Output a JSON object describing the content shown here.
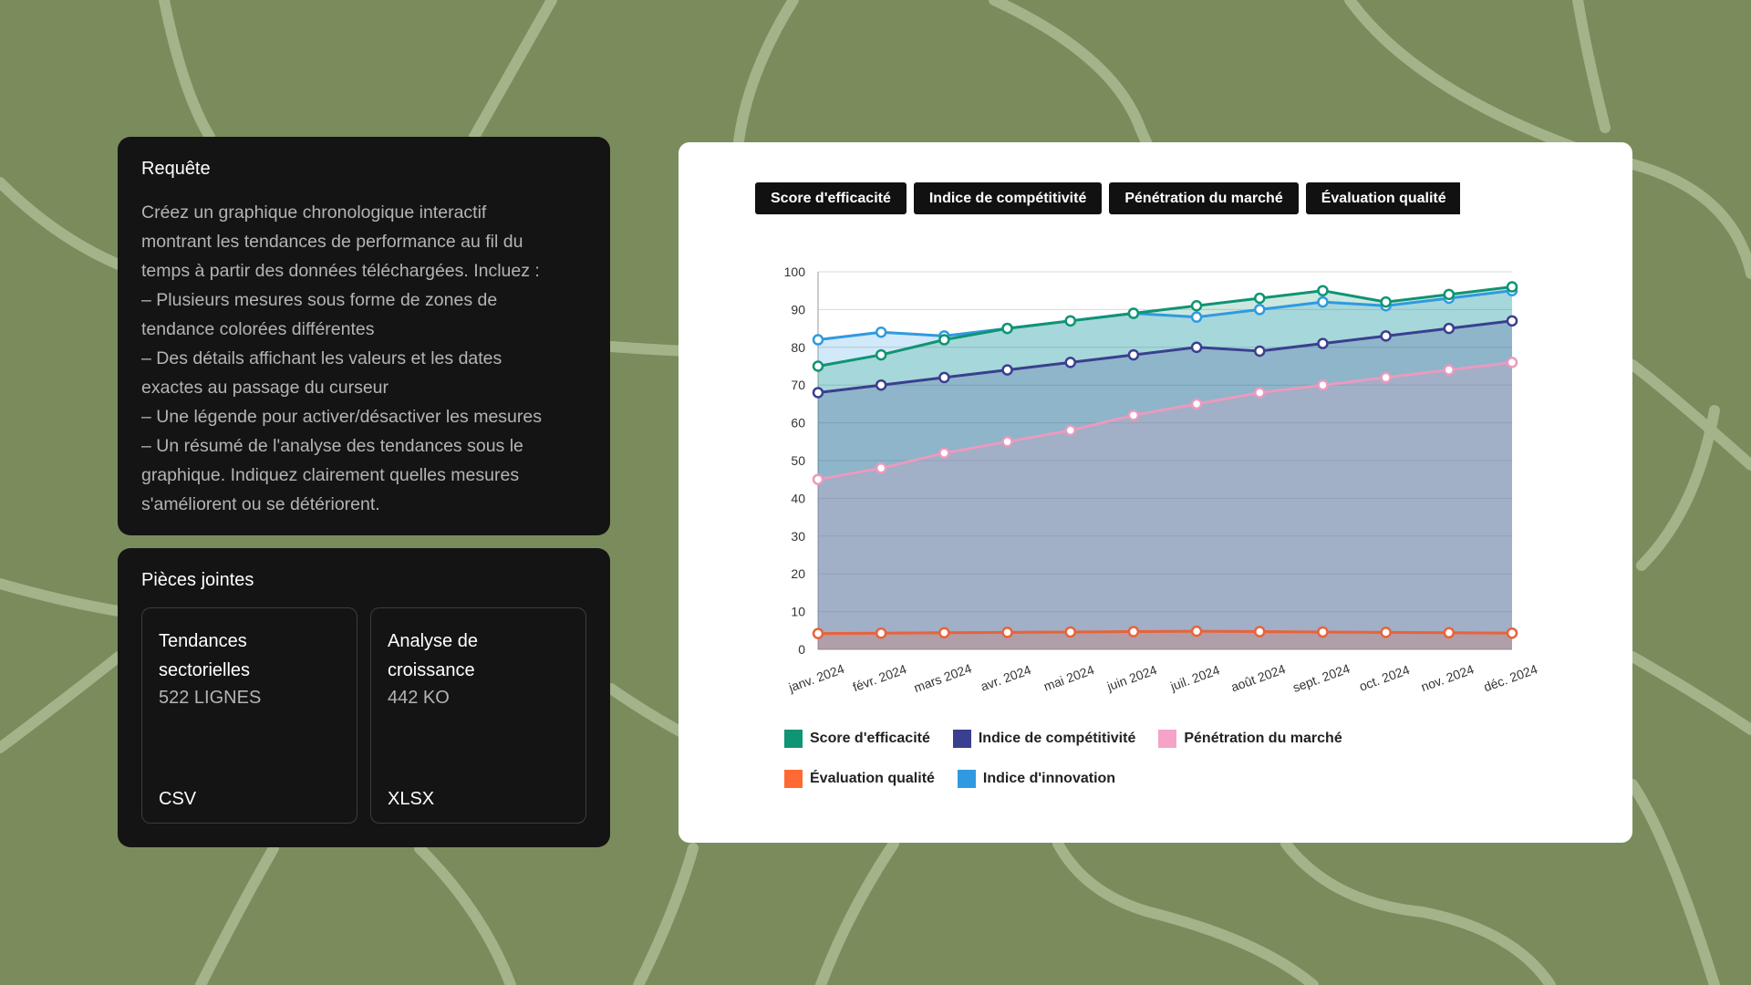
{
  "request": {
    "title": "Requête",
    "lines": [
      "Créez un graphique chronologique interactif",
      "montrant les tendances de performance au fil du",
      "temps à partir des données téléchargées. Incluez :",
      "– Plusieurs mesures sous forme de zones de",
      "tendance colorées différentes",
      "– Des détails affichant les valeurs et les dates",
      "exactes au passage du curseur",
      "– Une légende pour activer/désactiver les mesures",
      "– Un résumé de l'analyse des tendances sous le",
      "graphique. Indiquez clairement quelles mesures",
      "s'améliorent ou se détériorent."
    ]
  },
  "attachments": {
    "title": "Pièces jointes",
    "files": [
      {
        "name_line1": "Tendances",
        "name_line2": "sectorielles",
        "size": "522 LIGNES",
        "type": "CSV"
      },
      {
        "name_line1": "Analyse de",
        "name_line2": "croissance",
        "size": "442 KO",
        "type": "XLSX"
      }
    ]
  },
  "tabs": [
    "Score d'efficacité",
    "Indice de compétitivité",
    "Pénétration du marché",
    "Évaluation qualité"
  ],
  "chart_data": {
    "type": "area",
    "title": "",
    "xlabel": "",
    "ylabel": "",
    "ylim": [
      0,
      100
    ],
    "yticks": [
      0,
      10,
      20,
      30,
      40,
      50,
      60,
      70,
      80,
      90,
      100
    ],
    "categories": [
      "janv. 2024",
      "févr. 2024",
      "mars 2024",
      "avr. 2024",
      "mai 2024",
      "juin 2024",
      "juil. 2024",
      "août 2024",
      "sept. 2024",
      "oct. 2024",
      "nov. 2024",
      "déc. 2024"
    ],
    "series": [
      {
        "name": "Indice d'innovation",
        "color": "#2f9ae0",
        "values": [
          82,
          84,
          83,
          85,
          87,
          89,
          88,
          90,
          92,
          91,
          93,
          95
        ]
      },
      {
        "name": "Score d'efficacité",
        "color": "#0f9474",
        "values": [
          75,
          78,
          82,
          85,
          87,
          89,
          91,
          93,
          95,
          92,
          94,
          96
        ]
      },
      {
        "name": "Indice de compétitivité",
        "color": "#3a3f8f",
        "values": [
          68,
          70,
          72,
          74,
          76,
          78,
          80,
          79,
          81,
          83,
          85,
          87
        ]
      },
      {
        "name": "Pénétration du marché",
        "color": "#e99bbf",
        "values": [
          45,
          48,
          52,
          55,
          58,
          62,
          65,
          68,
          70,
          72,
          74,
          76
        ]
      },
      {
        "name": "Évaluation qualité",
        "color": "#e8633a",
        "values": [
          4.2,
          4.3,
          4.4,
          4.5,
          4.6,
          4.7,
          4.8,
          4.7,
          4.6,
          4.5,
          4.4,
          4.3
        ]
      }
    ],
    "legend": [
      {
        "label": "Score d'efficacité",
        "color": "#0f9474"
      },
      {
        "label": "Indice de compétitivité",
        "color": "#3a3f8f"
      },
      {
        "label": "Pénétration du marché",
        "color": "#f5a3c7"
      },
      {
        "label": "Évaluation qualité",
        "color": "#ff6a33"
      },
      {
        "label": "Indice d'innovation",
        "color": "#2f9ae0"
      }
    ]
  }
}
